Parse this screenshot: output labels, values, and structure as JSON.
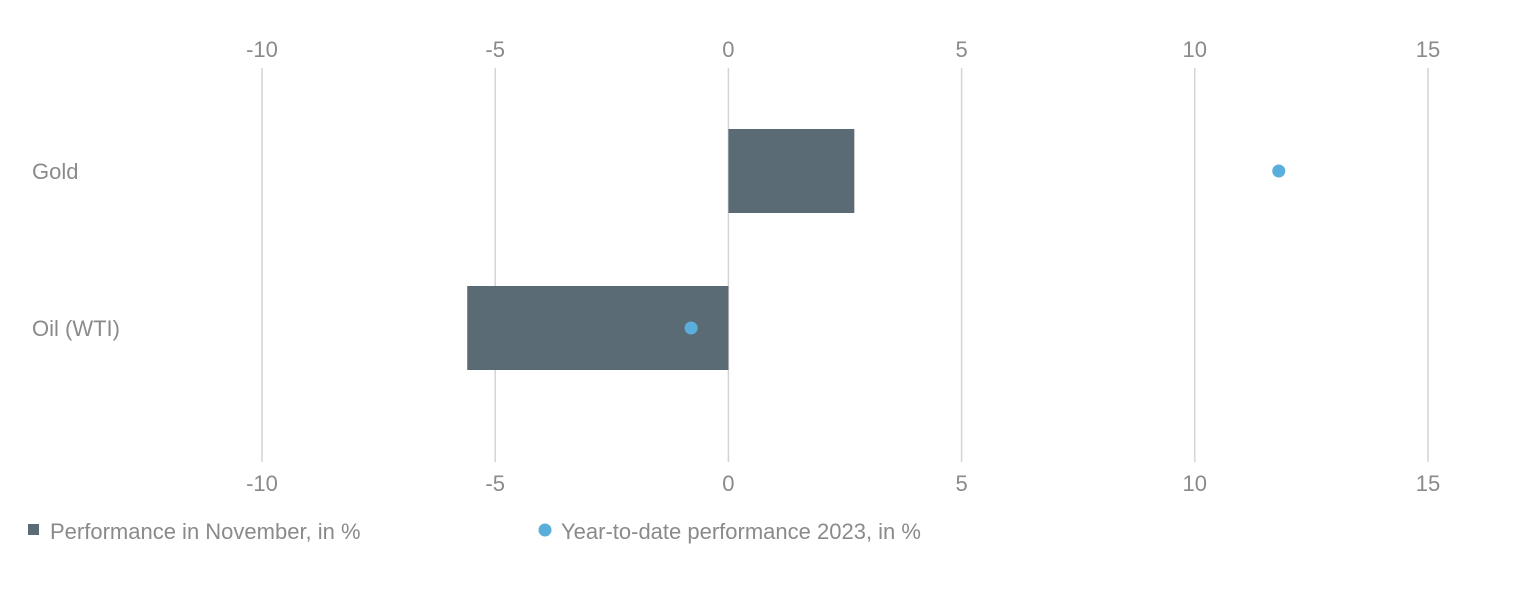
{
  "chart_data": {
    "type": "bar",
    "orientation": "horizontal",
    "categories": [
      "Gold",
      "Oil (WTI)"
    ],
    "series": [
      {
        "name": "Performance in November, in %",
        "mark": "bar",
        "color": "#5b6b76",
        "values": [
          2.7,
          -5.6
        ]
      },
      {
        "name": "Year-to-date performance 2023, in %",
        "mark": "dot",
        "color": "#5aaedb",
        "values": [
          11.8,
          -0.8
        ]
      }
    ],
    "xlim": [
      -10,
      15
    ],
    "xticks": [
      -10,
      -5,
      0,
      5,
      10,
      15
    ],
    "tick_labels": [
      "-10",
      "-5",
      "0",
      "5",
      "10",
      "15"
    ],
    "grid": true,
    "legend_position": "bottom-left",
    "title": "",
    "xlabel": "",
    "ylabel": ""
  }
}
